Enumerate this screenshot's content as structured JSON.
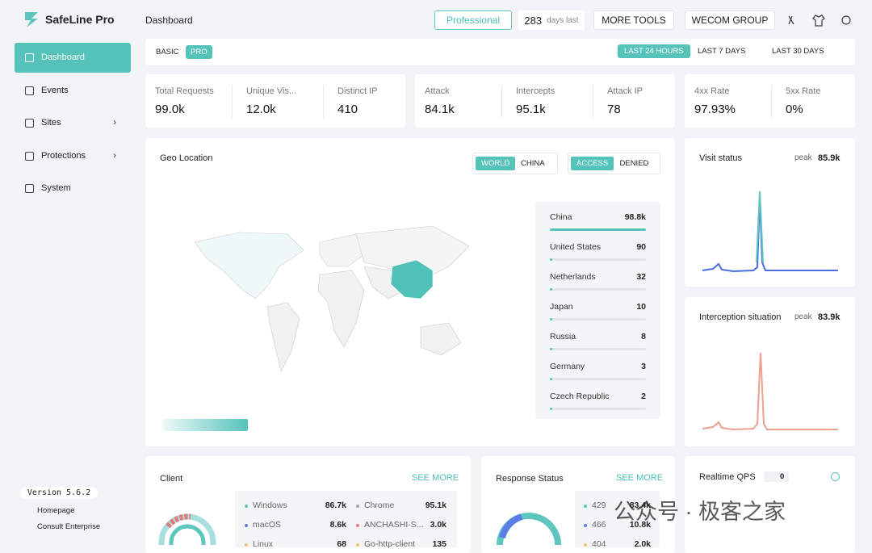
{
  "brand": "SafeLine Pro",
  "sidebar": {
    "nav": [
      "Dashboard",
      "Events",
      "Sites",
      "Protections",
      "System"
    ],
    "version": "Version 5.6.2",
    "links": [
      "Homepage",
      "Consult Enterprise"
    ]
  },
  "topbar": {
    "title": "Dashboard",
    "edition": "Professional",
    "days": "283",
    "days_label": "days last",
    "buttons": [
      "MORE TOOLS",
      "WECOM GROUP"
    ]
  },
  "filter": {
    "tabs": [
      "BASIC",
      "PRO"
    ],
    "ranges": [
      "LAST 24 HOURS",
      "LAST 7 DAYS",
      "LAST 30 DAYS"
    ]
  },
  "stats": [
    [
      {
        "label": "Total Requests",
        "value": "99.0k"
      },
      {
        "label": "Unique Vis...",
        "value": "12.0k"
      },
      {
        "label": "Distinct IP",
        "value": "410"
      }
    ],
    [
      {
        "label": "Attack",
        "value": "84.1k"
      },
      {
        "label": "Intercepts",
        "value": "95.1k"
      },
      {
        "label": "Attack IP",
        "value": "78"
      }
    ],
    [
      {
        "label": "4xx Rate",
        "value": "97.93%"
      },
      {
        "label": "5xx Rate",
        "value": "0%"
      }
    ]
  ],
  "geo": {
    "title": "Geo Location",
    "scope": [
      "WORLD",
      "CHINA"
    ],
    "mode": [
      "ACCESS",
      "DENIED"
    ],
    "ranking": [
      {
        "name": "China",
        "value": "98.8k"
      },
      {
        "name": "United States",
        "value": "90"
      },
      {
        "name": "Netherlands",
        "value": "32"
      },
      {
        "name": "Japan",
        "value": "10"
      },
      {
        "name": "Russia",
        "value": "8"
      },
      {
        "name": "Germany",
        "value": "3"
      },
      {
        "name": "Czech Republic",
        "value": "2"
      }
    ]
  },
  "visit": {
    "title": "Visit status",
    "peak_label": "peak",
    "peak": "85.9k"
  },
  "interception": {
    "title": "Interception situation",
    "peak_label": "peak",
    "peak": "83.9k"
  },
  "client": {
    "title": "Client",
    "more": "SEE MORE",
    "os": [
      {
        "name": "Windows",
        "value": "86.7k"
      },
      {
        "name": "macOS",
        "value": "8.6k"
      },
      {
        "name": "Linux",
        "value": "68"
      }
    ],
    "browsers": [
      {
        "name": "Chrome",
        "value": "95.1k"
      },
      {
        "name": "ANCHASHI-S...",
        "value": "3.0k"
      },
      {
        "name": "Go-http-client",
        "value": "135"
      }
    ]
  },
  "response": {
    "title": "Response Status",
    "more": "SEE MORE",
    "codes": [
      {
        "name": "429",
        "value": "83.4k"
      },
      {
        "name": "466",
        "value": "10.8k"
      },
      {
        "name": "404",
        "value": "2.0k"
      }
    ]
  },
  "qps": {
    "title": "Realtime QPS",
    "value": "0"
  },
  "watermark": "公众号 · 极客之家"
}
